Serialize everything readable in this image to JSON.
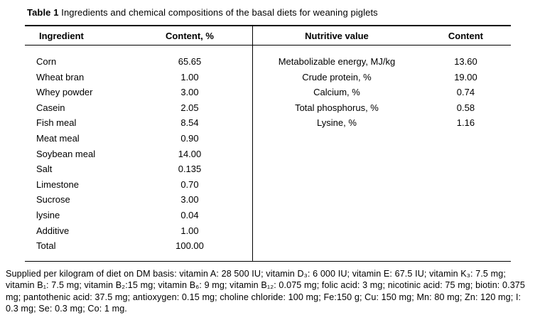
{
  "title": {
    "label": "Table 1",
    "text": " Ingredients and chemical compositions of the basal diets for weaning piglets"
  },
  "table": {
    "headers": {
      "ingredient": "Ingredient",
      "content_pct": "Content, %",
      "nutritive": "Nutritive value",
      "content": "Content"
    },
    "ingredients": [
      {
        "label": "Corn",
        "value": "65.65"
      },
      {
        "label": "Wheat bran",
        "value": "1.00"
      },
      {
        "label": "Whey powder",
        "value": "3.00"
      },
      {
        "label": "Casein",
        "value": "2.05"
      },
      {
        "label": "Fish meal",
        "value": "8.54"
      },
      {
        "label": "Meat meal",
        "value": "0.90"
      },
      {
        "label": "Soybean meal",
        "value": "14.00"
      },
      {
        "label": "Salt",
        "value": "0.135"
      },
      {
        "label": "Limestone",
        "value": "0.70"
      },
      {
        "label": "Sucrose",
        "value": "3.00"
      },
      {
        "label": "lysine",
        "value": "0.04"
      },
      {
        "label": "Additive",
        "value": "1.00"
      },
      {
        "label": "Total",
        "value": "100.00"
      }
    ],
    "nutritive_values": [
      {
        "label": "Metabolizable energy, MJ/kg",
        "value": "13.60"
      },
      {
        "label": "Crude protein, %",
        "value": "19.00"
      },
      {
        "label": "Calcium, %",
        "value": "0.74"
      },
      {
        "label": "Total phosphorus, %",
        "value": "0.58"
      },
      {
        "label": "Lysine, %",
        "value": "1.16"
      }
    ]
  },
  "footnote": "Supplied per kilogram of diet on DM basis: vitamin A: 28 500 IU; vitamin D₃: 6 000 IU; vitamin E: 67.5 IU; vitamin K₃: 7.5 mg; vitamin B₁: 7.5 mg; vitamin B₂:15 mg; vitamin B₆: 9 mg; vitamin B₁₂: 0.075 mg; folic acid: 3 mg; nicotinic acid: 75 mg; biotin: 0.375 mg; pantothenic acid: 37.5 mg; antioxygen: 0.15 mg; choline chloride: 100 mg; Fe:150 g; Cu: 150 mg; Mn: 80 mg; Zn: 120 mg; I: 0.3 mg; Se: 0.3 mg; Co: 1 mg."
}
